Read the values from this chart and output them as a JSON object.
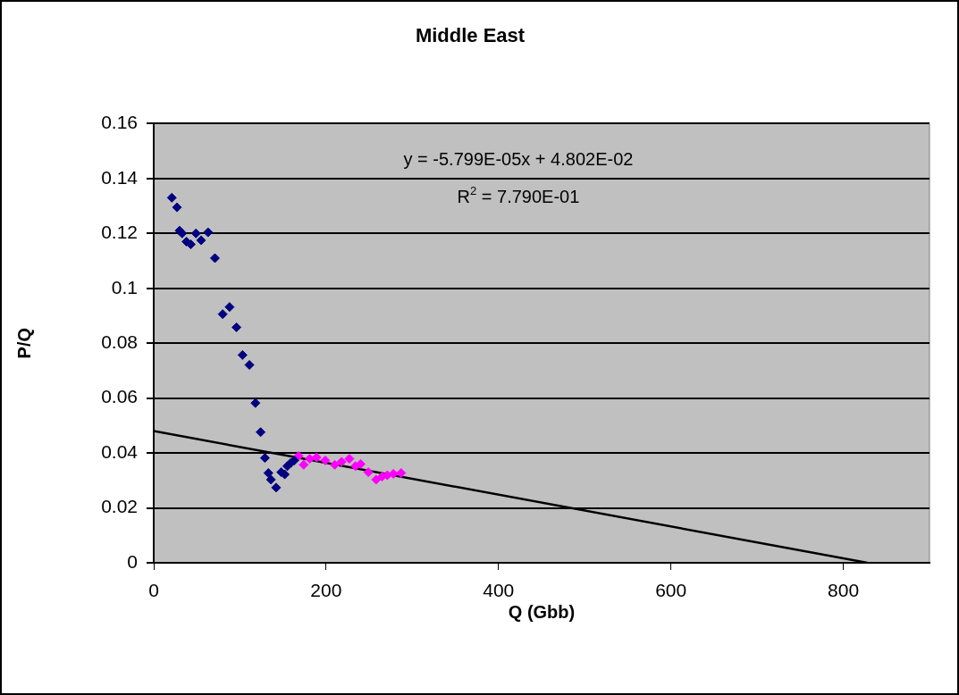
{
  "chart_data": {
    "type": "scatter",
    "title": "Middle East",
    "xlabel": "Q (Gbb)",
    "ylabel": "P/Q",
    "xlim": [
      0,
      900
    ],
    "xticks": [
      0,
      200,
      400,
      600,
      800
    ],
    "ylim": [
      0,
      0.16
    ],
    "yticks": [
      0,
      0.02,
      0.04,
      0.06,
      0.08,
      0.1,
      0.12,
      0.14,
      0.16
    ],
    "grid": "y",
    "legend": false,
    "marker": "diamond",
    "annotations": [
      "y = -5.799E-05x + 4.802E-02",
      "R$^{2}$ = 7.790E-01"
    ],
    "series": [
      {
        "type": "scatter",
        "color": "#000080",
        "x": [
          21,
          27,
          30,
          33,
          38,
          43,
          49,
          55,
          63,
          71,
          80,
          88,
          96,
          103,
          111,
          118,
          124,
          129,
          133,
          136,
          142,
          148,
          152,
          155,
          159,
          163
        ],
        "values": [
          0.133,
          0.1295,
          0.121,
          0.12,
          0.117,
          0.116,
          0.12,
          0.1175,
          0.1204,
          0.111,
          0.0906,
          0.0932,
          0.0858,
          0.0757,
          0.0721,
          0.0582,
          0.0476,
          0.0382,
          0.0327,
          0.0303,
          0.0274,
          0.033,
          0.0322,
          0.0352,
          0.0364,
          0.0373
        ]
      },
      {
        "type": "scatter",
        "color": "#ff00ff",
        "x": [
          168,
          174,
          181,
          189,
          199,
          210,
          218,
          227,
          234,
          240,
          249,
          258,
          265,
          271,
          278,
          287
        ],
        "values": [
          0.0389,
          0.0357,
          0.0379,
          0.0384,
          0.0373,
          0.0357,
          0.0368,
          0.0379,
          0.0352,
          0.036,
          0.033,
          0.0303,
          0.0314,
          0.0319,
          0.0324,
          0.0327
        ]
      },
      {
        "type": "line",
        "color": "#000000",
        "marker": "none",
        "x": [
          0,
          828
        ],
        "values": [
          0.048,
          0
        ]
      }
    ]
  }
}
